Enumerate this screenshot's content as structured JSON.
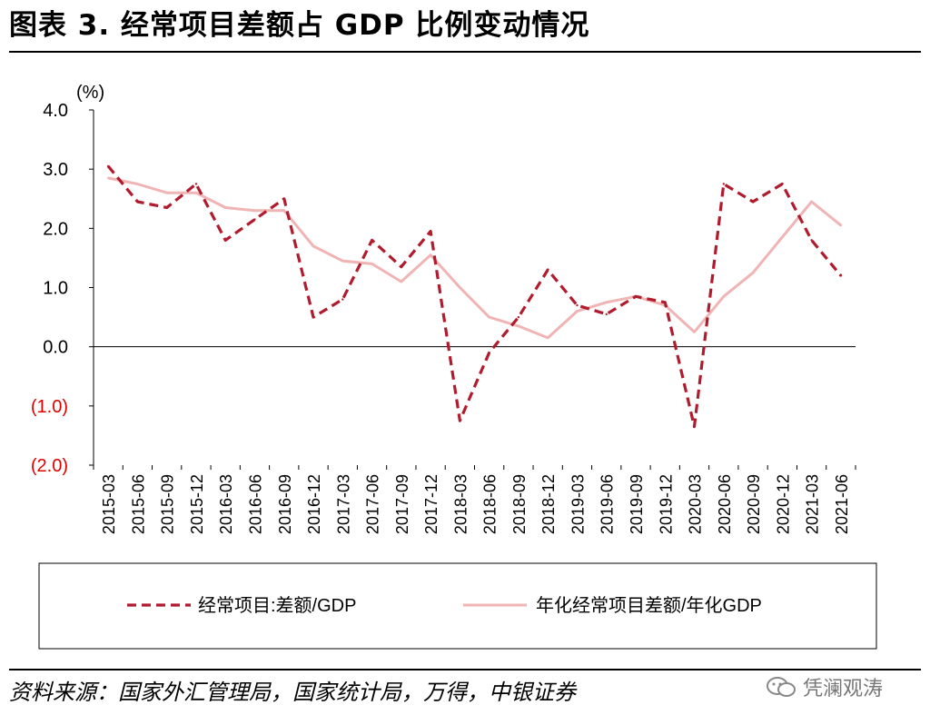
{
  "title": "图表 3. 经常项目差额占 GDP 比例变动情况",
  "source": "资料来源：国家外汇管理局，国家统计局，万得，中银证券",
  "watermark": "凭澜观涛",
  "colors": {
    "series1": "#b01c2e",
    "series2": "#f0b4b4",
    "negative_tick": "#e00000"
  },
  "chart_data": {
    "type": "line",
    "ylabel": "(%)",
    "ylim": [
      -2.0,
      4.0
    ],
    "yticks": [
      4.0,
      3.0,
      2.0,
      1.0,
      0.0,
      -1.0,
      -2.0
    ],
    "ytick_labels": [
      "4.0",
      "3.0",
      "2.0",
      "1.0",
      "0.0",
      "(1.0)",
      "(2.0)"
    ],
    "categories": [
      "2015-03",
      "2015-06",
      "2015-09",
      "2015-12",
      "2016-03",
      "2016-06",
      "2016-09",
      "2016-12",
      "2017-03",
      "2017-06",
      "2017-09",
      "2017-12",
      "2018-03",
      "2018-06",
      "2018-09",
      "2018-12",
      "2019-03",
      "2019-06",
      "2019-09",
      "2019-12",
      "2020-03",
      "2020-06",
      "2020-09",
      "2020-12",
      "2021-03",
      "2021-06"
    ],
    "series": [
      {
        "name": "经常项目:差额/GDP",
        "style": "dashed",
        "values": [
          3.05,
          2.45,
          2.35,
          2.75,
          1.8,
          2.15,
          2.5,
          0.5,
          0.8,
          1.8,
          1.35,
          1.95,
          -1.25,
          -0.1,
          0.5,
          1.3,
          0.7,
          0.55,
          0.85,
          0.75,
          -1.35,
          2.75,
          2.45,
          2.75,
          1.8,
          1.2
        ]
      },
      {
        "name": "年化经常项目差额/年化GDP",
        "style": "solid",
        "values": [
          2.85,
          2.75,
          2.6,
          2.6,
          2.35,
          2.3,
          2.3,
          1.7,
          1.45,
          1.4,
          1.1,
          1.55,
          1.0,
          0.5,
          0.35,
          0.15,
          0.6,
          0.75,
          0.85,
          0.7,
          0.25,
          0.85,
          1.25,
          1.85,
          2.45,
          2.05
        ]
      }
    ],
    "grid": false,
    "legend_position": "bottom"
  }
}
